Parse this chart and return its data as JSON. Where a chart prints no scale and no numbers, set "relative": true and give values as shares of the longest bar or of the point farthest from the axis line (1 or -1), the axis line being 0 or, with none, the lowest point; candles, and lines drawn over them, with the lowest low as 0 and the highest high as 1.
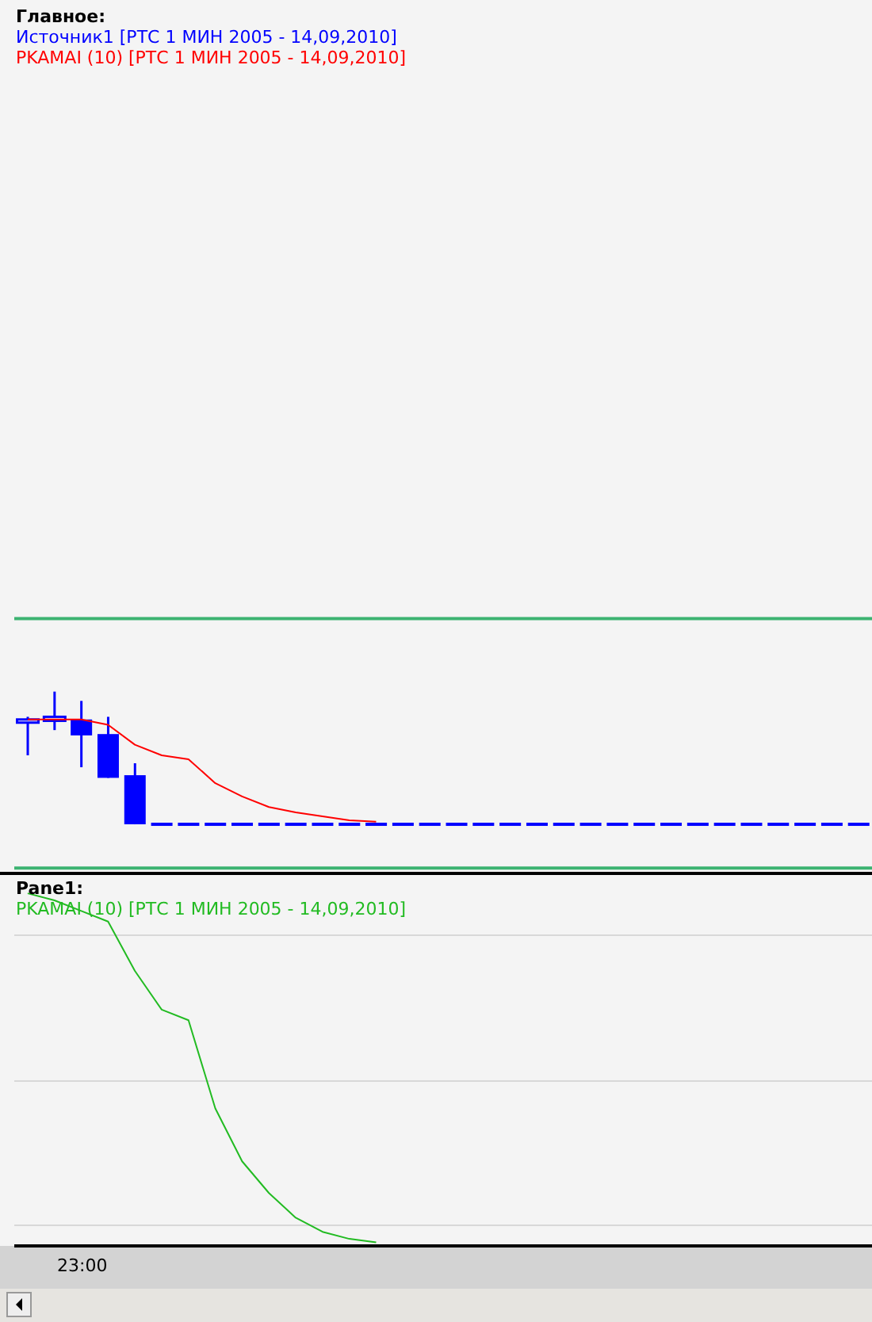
{
  "chart_data": [
    {
      "type": "candlestick",
      "title": "Главное:",
      "relative": true,
      "categories": [
        null,
        null,
        null,
        null,
        null,
        null,
        null,
        null,
        null,
        null,
        null,
        null,
        null,
        null,
        null,
        null,
        null,
        null,
        null,
        null,
        null,
        null,
        null,
        null,
        null,
        null,
        null,
        null,
        null,
        null,
        null,
        null
      ],
      "legend": "top left",
      "marker": "none",
      "series": [
        {
          "name": "Источник1 [РТС 1 МИН 2005 - 14,09,2010]",
          "color": "#0000ff",
          "ohlc": [
            [
              0.77,
              0.81,
              0.52,
              0.79
            ],
            [
              0.78,
              1,
              0.71,
              0.81
            ],
            [
              0.79,
              0.93,
              0.43,
              0.67
            ],
            [
              0.68,
              0.81,
              0.35,
              0.35
            ],
            [
              0.37,
              0.46,
              0,
              0
            ],
            [
              0,
              0,
              0,
              0
            ],
            [
              0,
              0,
              0,
              0
            ],
            [
              0,
              0,
              0,
              0
            ],
            [
              0,
              0,
              0,
              0
            ],
            [
              0,
              0,
              0,
              0
            ],
            [
              0,
              0,
              0,
              0
            ],
            [
              0,
              0,
              0,
              0
            ],
            [
              0,
              0,
              0,
              0
            ],
            [
              0,
              0,
              0,
              0
            ],
            [
              0,
              0,
              0,
              0
            ],
            [
              0,
              0,
              0,
              0
            ],
            [
              0,
              0,
              0,
              0
            ],
            [
              0,
              0,
              0,
              0
            ],
            [
              0,
              0,
              0,
              0
            ],
            [
              0,
              0,
              0,
              0
            ],
            [
              0,
              0,
              0,
              0
            ],
            [
              0,
              0,
              0,
              0
            ],
            [
              0,
              0,
              0,
              0
            ],
            [
              0,
              0,
              0,
              0
            ],
            [
              0,
              0,
              0,
              0
            ],
            [
              0,
              0,
              0,
              0
            ],
            [
              0,
              0,
              0,
              0
            ],
            [
              0,
              0,
              0,
              0
            ],
            [
              0,
              0,
              0,
              0
            ],
            [
              0,
              0,
              0,
              0
            ],
            [
              0,
              0,
              0,
              0
            ],
            [
              0,
              0,
              0,
              0
            ]
          ]
        },
        {
          "type": "line",
          "name": "PKAMAI (10) [РТС 1 МИН 2005 - 14,09,2010]",
          "color": "#ff0000",
          "values": [
            0.79,
            0.79,
            0.79,
            0.75,
            0.6,
            0.52,
            0.49,
            0.31,
            0.21,
            0.13,
            0.09,
            0.06,
            0.03,
            0.02,
            null,
            null,
            null,
            null,
            null,
            null,
            null,
            null,
            null,
            null,
            null,
            null,
            null,
            null,
            null,
            null,
            null,
            null
          ]
        }
      ],
      "ref_lines": [
        {
          "axis": "y",
          "value": 1.55,
          "color": "#3cb371"
        },
        {
          "axis": "y",
          "value": -0.33,
          "color": "#3cb371"
        }
      ]
    },
    {
      "type": "line",
      "title": "Pane1:",
      "relative": true,
      "annotations": [
        "23:00"
      ],
      "categories": [
        null,
        null,
        null,
        null,
        null,
        null,
        null,
        null,
        null,
        null,
        null,
        null,
        null,
        null,
        null,
        null,
        null,
        null,
        null,
        null,
        null,
        null,
        null,
        null,
        null,
        null,
        null,
        null,
        null,
        null,
        null,
        null
      ],
      "grid": "y",
      "legend": "top left",
      "marker": "none",
      "series": [
        {
          "name": "PKAMAI (10) [РТС 1 МИН 2005 - 14,09,2010]",
          "color": "#22bb22",
          "values": [
            1,
            0.98,
            0.95,
            0.92,
            0.78,
            0.67,
            0.64,
            0.39,
            0.24,
            0.15,
            0.08,
            0.04,
            0.02,
            0.01,
            null,
            null,
            null,
            null,
            null,
            null,
            null,
            null,
            null,
            null,
            null,
            null,
            null,
            null,
            null,
            null,
            null,
            null
          ]
        }
      ]
    }
  ]
}
